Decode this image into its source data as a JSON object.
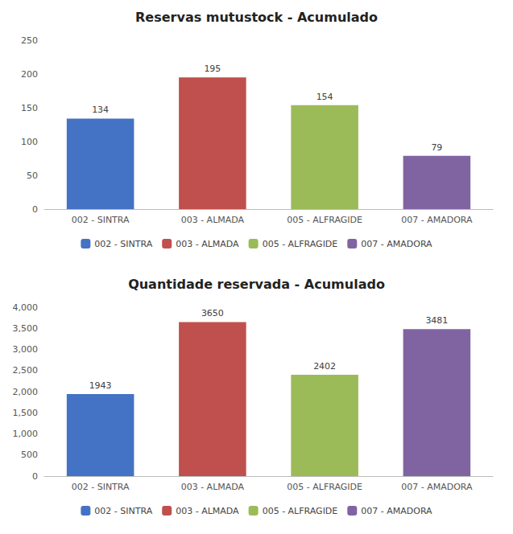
{
  "chart_data": [
    {
      "type": "bar",
      "title": "Reservas mutustock - Acumulado",
      "categories": [
        "002 - SINTRA",
        "003 - ALMADA",
        "005 - ALFRAGIDE",
        "007 - AMADORA"
      ],
      "values": [
        134,
        195,
        154,
        79
      ],
      "colors": [
        "#4472C4",
        "#C0504D",
        "#9BBB59",
        "#8064A2"
      ],
      "ylim": [
        0,
        250
      ],
      "yticks": [
        0,
        50,
        100,
        150,
        200,
        250
      ],
      "grid": false,
      "data_labels": true,
      "legend": "bottom"
    },
    {
      "type": "bar",
      "title": "Quantidade reservada - Acumulado",
      "categories": [
        "002 - SINTRA",
        "003 - ALMADA",
        "005 - ALFRAGIDE",
        "007 - AMADORA"
      ],
      "values": [
        1943,
        3650,
        2402,
        3481
      ],
      "colors": [
        "#4472C4",
        "#C0504D",
        "#9BBB59",
        "#8064A2"
      ],
      "ylim": [
        0,
        4000
      ],
      "yticks": [
        0,
        500,
        1000,
        1500,
        2000,
        2500,
        3000,
        3500,
        4000
      ],
      "grid": false,
      "data_labels": true,
      "legend": "bottom"
    }
  ]
}
